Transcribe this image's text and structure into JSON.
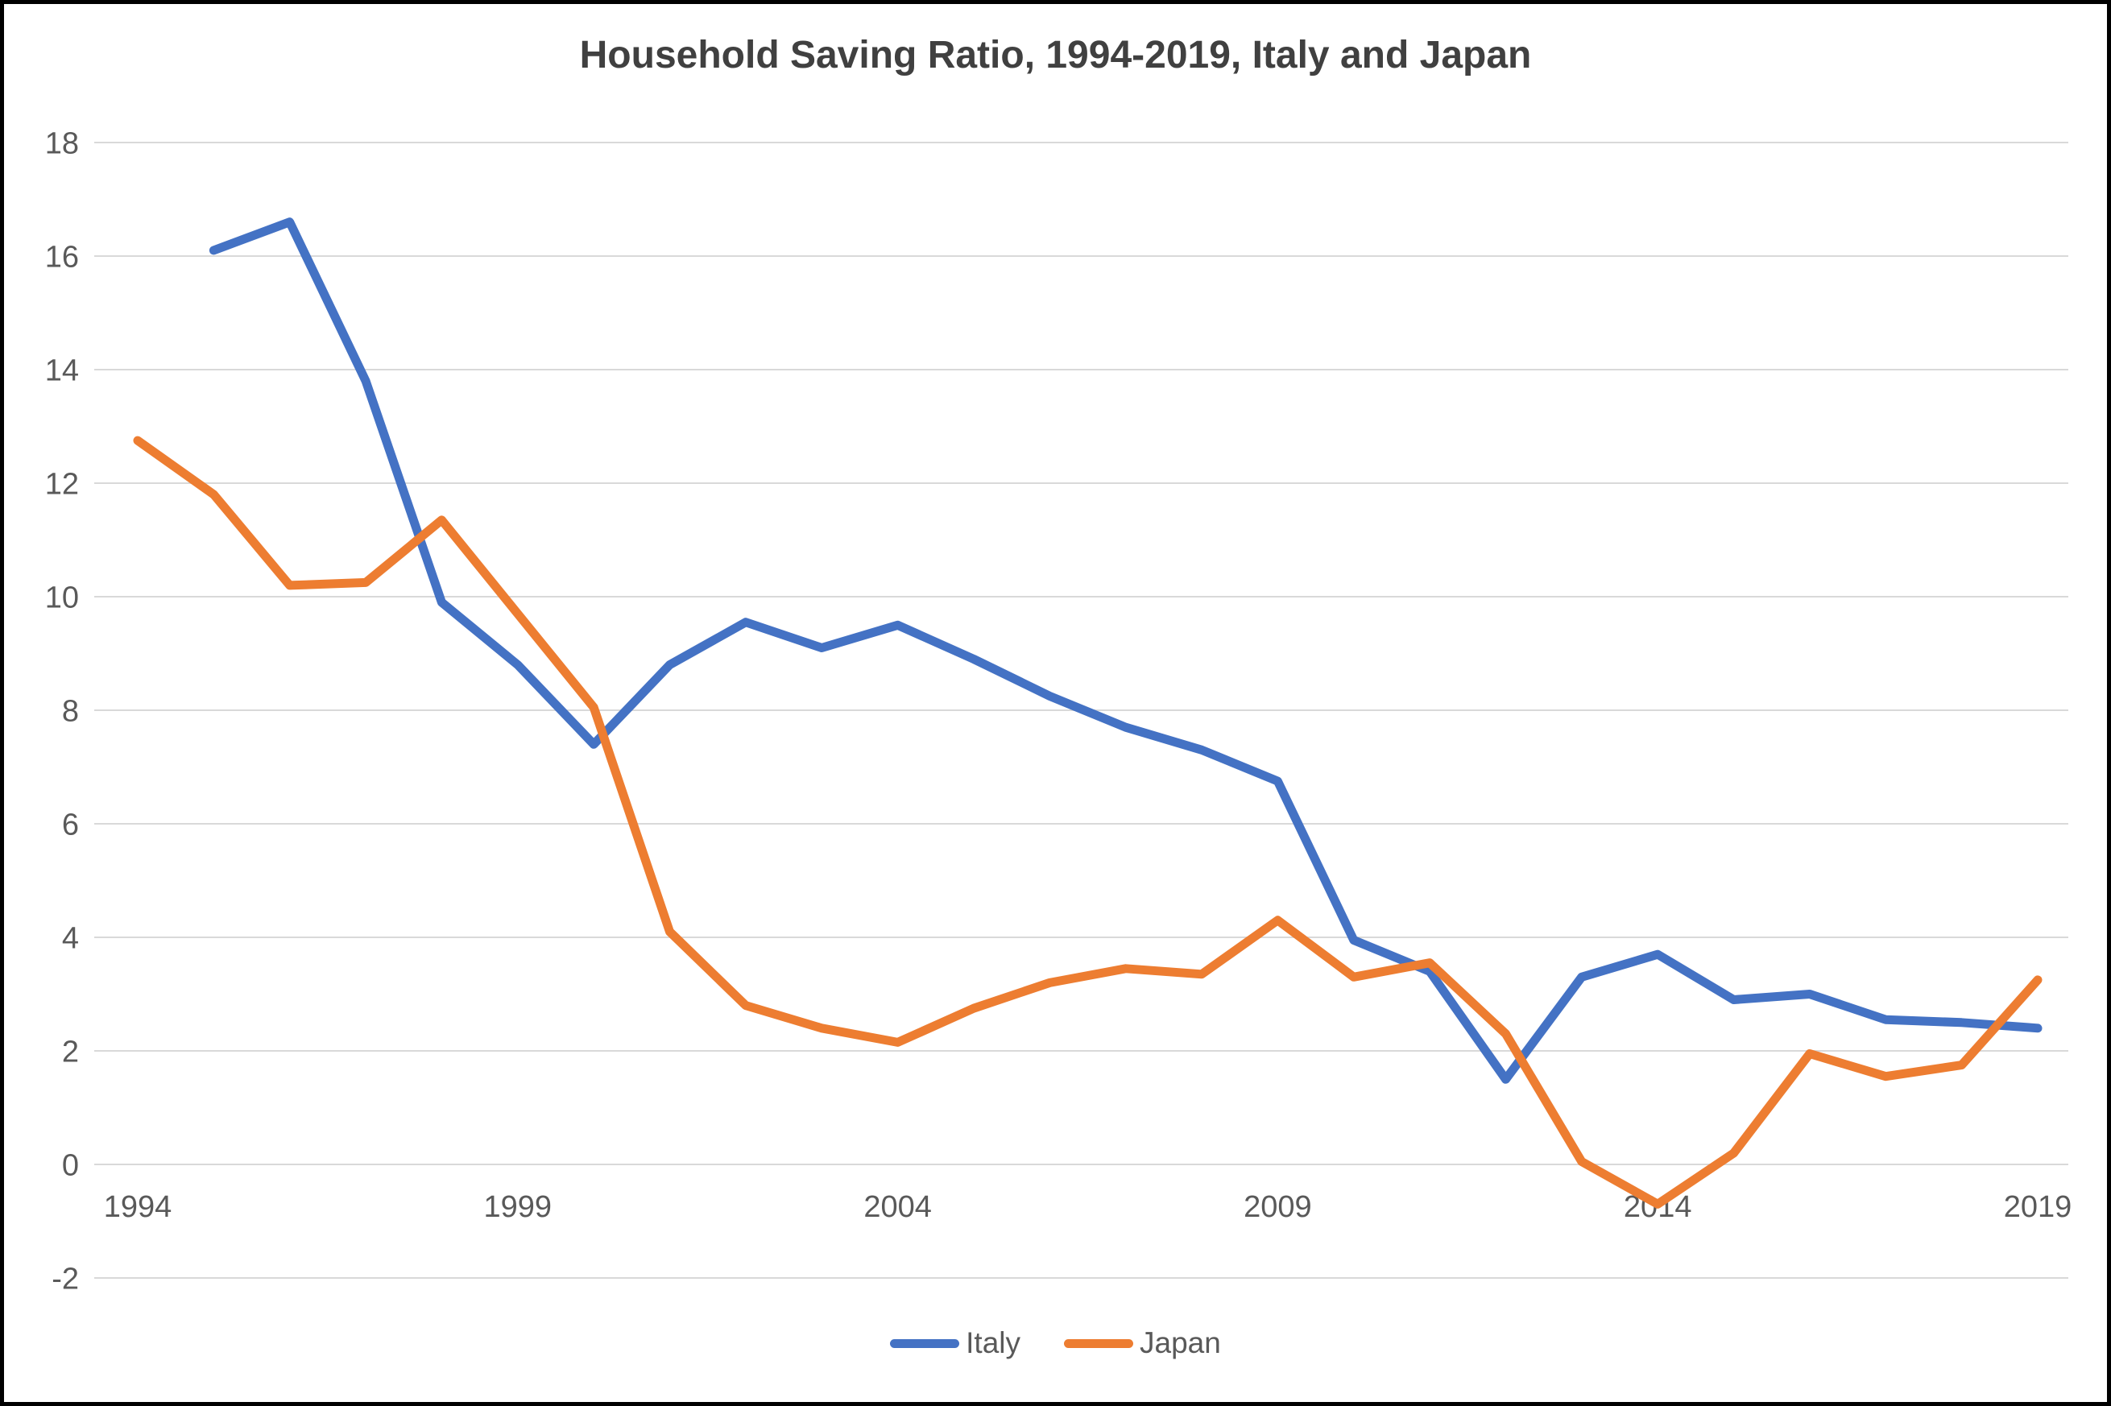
{
  "title": "Household Saving Ratio, 1994-2019, Italy and Japan",
  "colors": {
    "italy": "#4472C4",
    "japan": "#ED7D31",
    "gridline": "#D9D9D9",
    "axis_label": "#595959",
    "title_text": "#404040",
    "background": "#FFFFFF",
    "frame_border": "#000000"
  },
  "legend": {
    "position": "bottom-center",
    "items": [
      {
        "label": "Italy",
        "color": "#4472C4"
      },
      {
        "label": "Japan",
        "color": "#ED7D31"
      }
    ]
  },
  "chart_data": {
    "type": "line",
    "title": "Household Saving Ratio, 1994-2019, Italy and Japan",
    "xlabel": "",
    "ylabel": "",
    "grid": true,
    "legend_position": "bottom",
    "xlim": [
      1994,
      2019
    ],
    "ylim": [
      -2,
      18
    ],
    "x_tick_labels": [
      "1994",
      "1999",
      "2004",
      "2009",
      "2014",
      "2019"
    ],
    "x_tick_values": [
      1994,
      1999,
      2004,
      2009,
      2014,
      2019
    ],
    "y_tick_values": [
      18,
      16,
      14,
      12,
      10,
      8,
      6,
      4,
      2,
      0,
      -2
    ],
    "series": [
      {
        "name": "Italy",
        "color": "#4472C4",
        "x": [
          1995,
          1996,
          1997,
          1998,
          1999,
          2000,
          2001,
          2002,
          2003,
          2004,
          2005,
          2006,
          2007,
          2008,
          2009,
          2010,
          2011,
          2012,
          2013,
          2014,
          2015,
          2016,
          2017,
          2018,
          2019
        ],
        "values": [
          16.1,
          16.6,
          13.8,
          9.9,
          8.8,
          7.4,
          8.8,
          9.55,
          9.1,
          9.5,
          8.9,
          8.25,
          7.7,
          7.3,
          6.75,
          3.95,
          3.4,
          1.5,
          3.3,
          3.7,
          2.9,
          3.0,
          2.55,
          2.5,
          2.4
        ]
      },
      {
        "name": "Japan",
        "color": "#ED7D31",
        "x": [
          1994,
          1995,
          1996,
          1997,
          1998,
          1999,
          2000,
          2001,
          2002,
          2003,
          2004,
          2005,
          2006,
          2007,
          2008,
          2009,
          2010,
          2011,
          2012,
          2013,
          2014,
          2015,
          2016,
          2017,
          2018,
          2019
        ],
        "values": [
          12.75,
          11.8,
          10.2,
          10.25,
          11.35,
          9.7,
          8.05,
          4.1,
          2.8,
          2.4,
          2.15,
          2.75,
          3.2,
          3.45,
          3.35,
          4.3,
          3.3,
          3.55,
          2.3,
          0.05,
          -0.7,
          0.2,
          1.95,
          1.55,
          1.75,
          3.25
        ]
      }
    ]
  }
}
